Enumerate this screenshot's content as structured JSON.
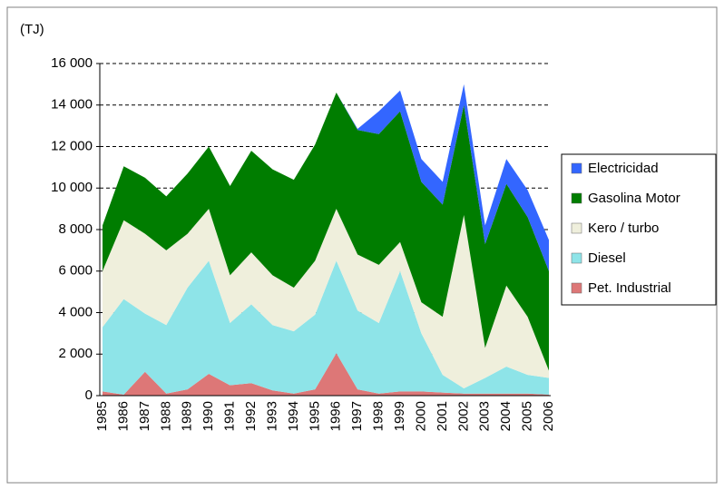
{
  "chart_data": {
    "type": "stacked_area",
    "y_label": "(TJ)",
    "categories": [
      "1985",
      "1986",
      "1987",
      "1988",
      "1989",
      "1990",
      "1991",
      "1992",
      "1993",
      "1994",
      "1995",
      "1996",
      "1997",
      "1998",
      "1999",
      "2000",
      "2001",
      "2002",
      "2003",
      "2004",
      "2005",
      "2006"
    ],
    "series": [
      {
        "name": "Pet. Industrial",
        "color": "#dd7777",
        "values": [
          200,
          50,
          1150,
          100,
          300,
          1050,
          500,
          600,
          250,
          100,
          300,
          2050,
          300,
          100,
          200,
          200,
          150,
          100,
          100,
          100,
          100,
          50
        ]
      },
      {
        "name": "Diesel",
        "color": "#8ee4e8",
        "values": [
          3100,
          4600,
          2800,
          3300,
          4900,
          5450,
          3000,
          3800,
          3150,
          3000,
          3600,
          4450,
          3800,
          3400,
          5800,
          2800,
          850,
          250,
          750,
          1300,
          900,
          800
        ]
      },
      {
        "name": "Kero / turbo",
        "color": "#efefdc",
        "values": [
          2700,
          3800,
          3850,
          3600,
          2600,
          2500,
          2300,
          2500,
          2400,
          2100,
          2600,
          2500,
          2700,
          2800,
          1400,
          1500,
          2800,
          8350,
          1450,
          3900,
          2800,
          350
        ]
      },
      {
        "name": "Gasolina Motor",
        "color": "#007d00",
        "values": [
          2200,
          2600,
          2700,
          2600,
          2900,
          3000,
          4300,
          4900,
          5100,
          5200,
          5600,
          5600,
          6000,
          6300,
          6300,
          5800,
          5400,
          5300,
          5000,
          4900,
          4800,
          4800
        ]
      },
      {
        "name": "Electricidad",
        "color": "#3366ff",
        "values": [
          0,
          0,
          0,
          0,
          0,
          0,
          0,
          0,
          0,
          0,
          0,
          0,
          50,
          1100,
          1000,
          1100,
          1100,
          1000,
          900,
          1200,
          1300,
          1500
        ]
      }
    ],
    "ylim": [
      0,
      16000
    ],
    "yticks": [
      0,
      {
        "value": 2000,
        "label": "2 000"
      },
      {
        "value": 4000,
        "label": "4 000"
      },
      {
        "value": 6000,
        "label": "6 000"
      },
      {
        "value": 8000,
        "label": "8 000"
      },
      {
        "value": 10000,
        "label": "10 000"
      },
      {
        "value": 12000,
        "label": "12 000"
      },
      {
        "value": 14000,
        "label": "14 000"
      },
      {
        "value": 16000,
        "label": "16 000"
      }
    ],
    "grid": true,
    "legend": "right"
  }
}
